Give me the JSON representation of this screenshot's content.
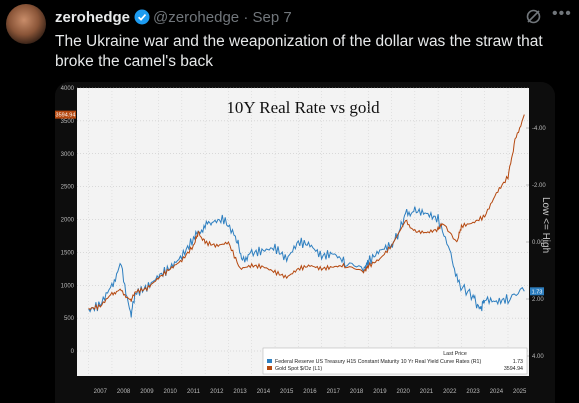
{
  "header": {
    "display_name": "zerohedge",
    "handle": "@zerohedge",
    "separator": "·",
    "date": "Sep 7"
  },
  "tweet": {
    "text": "The Ukraine war and the weaponization of the dollar was the straw that broke the camel's back"
  },
  "icons": {
    "verified": "verified-badge-icon",
    "grok": "grok-icon",
    "more": "more-icon"
  },
  "colors": {
    "gold": "#b5480f",
    "yield": "#2e7fc0",
    "background": "#000000",
    "chart_panel": "#f3f3f3"
  },
  "chart_data": {
    "type": "line",
    "title": "10Y Real Rate vs gold",
    "x_ticks": [
      "2007",
      "2008",
      "2009",
      "2010",
      "2011",
      "2012",
      "2013",
      "2014",
      "2015",
      "2016",
      "2017",
      "2018",
      "2019",
      "2020",
      "2021",
      "2022",
      "2023",
      "2024",
      "2025"
    ],
    "left_axis": {
      "ticks": [
        "4000",
        "3500",
        "3000",
        "2500",
        "2000",
        "1500",
        "1000",
        "500",
        "0"
      ],
      "ylim": [
        0,
        4000
      ]
    },
    "right_axis": {
      "ticks": [
        "-4.00",
        "-2.00",
        "0.00",
        "2.00",
        "4.00"
      ],
      "ylim": [
        -4,
        4
      ],
      "inverted": true,
      "label": "Low <= High"
    },
    "last_price_header": "Last Price",
    "series": [
      {
        "name": "Federal Reserve US Treasury H15 Constant Maturity 10 Yr Real Yield Curve Rates (R1)",
        "axis": "right",
        "last": "1.73",
        "x": [
          2007,
          2007.5,
          2008,
          2008.4,
          2008.8,
          2009,
          2009.5,
          2010,
          2010.5,
          2011,
          2011.5,
          2011.9,
          2012.3,
          2012.8,
          2013.3,
          2013.6,
          2014,
          2014.5,
          2015,
          2015.5,
          2016,
          2016.5,
          2017,
          2017.5,
          2018,
          2018.8,
          2019,
          2019.5,
          2020,
          2020.3,
          2020.6,
          2021,
          2021.5,
          2022,
          2022.5,
          2022.9,
          2023.5,
          2023.8,
          2024,
          2024.5,
          2025,
          2025.7
        ],
        "values": [
          2.4,
          2.2,
          1.5,
          0.8,
          2.6,
          1.8,
          1.6,
          1.2,
          0.9,
          0.5,
          -0.1,
          -0.5,
          -0.7,
          -0.8,
          -0.2,
          0.6,
          0.4,
          0.3,
          0.2,
          0.6,
          0.0,
          0.1,
          0.5,
          0.4,
          0.7,
          1.0,
          0.7,
          0.3,
          0.1,
          -0.3,
          -1.0,
          -1.1,
          -1.0,
          -0.8,
          0.3,
          1.5,
          1.9,
          2.4,
          2.0,
          2.1,
          2.0,
          1.73
        ]
      },
      {
        "name": "Gold Spot $/Oz (L1)",
        "axis": "left",
        "last": "3594.94",
        "x": [
          2007,
          2007.5,
          2008,
          2008.4,
          2008.8,
          2009,
          2009.5,
          2010,
          2010.5,
          2011,
          2011.5,
          2011.7,
          2012,
          2012.5,
          2013,
          2013.5,
          2014,
          2014.5,
          2015,
          2015.5,
          2016,
          2016.5,
          2017,
          2017.5,
          2018,
          2018.8,
          2019,
          2019.5,
          2020,
          2020.6,
          2021,
          2021.5,
          2022,
          2022.2,
          2022.8,
          2023,
          2023.5,
          2024,
          2024.5,
          2025,
          2025.3,
          2025.7
        ],
        "values": [
          640,
          680,
          880,
          920,
          760,
          900,
          950,
          1110,
          1250,
          1380,
          1600,
          1800,
          1650,
          1600,
          1650,
          1250,
          1300,
          1280,
          1200,
          1120,
          1250,
          1300,
          1250,
          1280,
          1300,
          1200,
          1290,
          1400,
          1600,
          1980,
          1820,
          1800,
          1850,
          1950,
          1650,
          1900,
          1950,
          2050,
          2400,
          2650,
          3200,
          3594.94
        ]
      }
    ],
    "badges": {
      "gold_last": "3594.94",
      "yield_last": "1.73"
    }
  }
}
